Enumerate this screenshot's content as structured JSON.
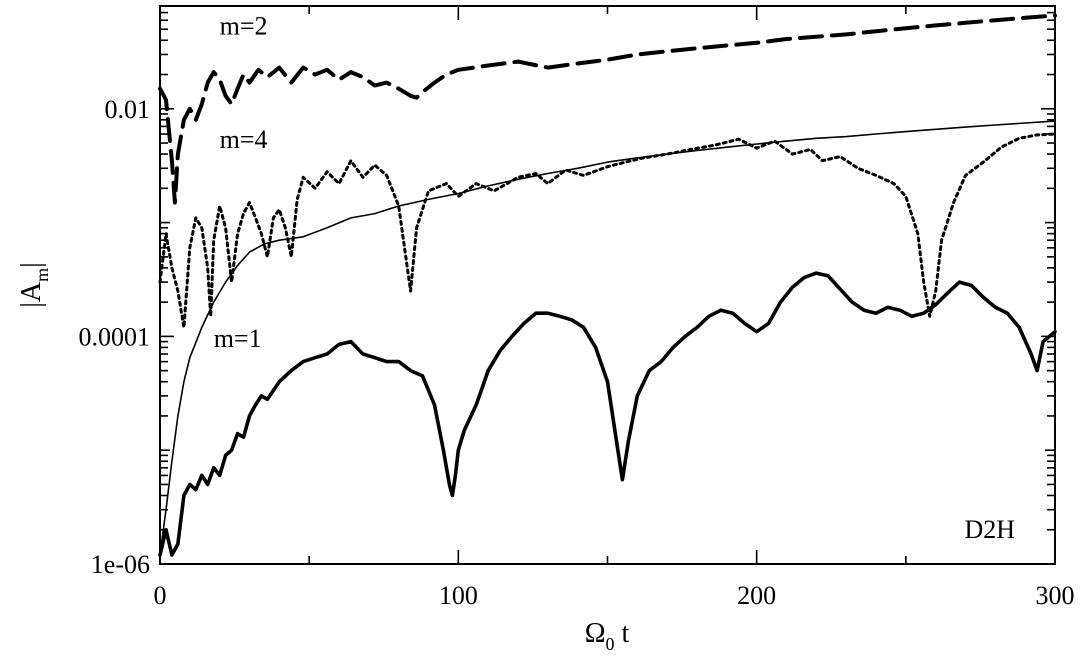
{
  "chart_data": {
    "type": "line",
    "x_title": {
      "main": "Ω",
      "sub": "0",
      "rest": " t"
    },
    "y_title": {
      "main": "|A",
      "sub": "m",
      "rest": "|"
    },
    "xlim": [
      0,
      300
    ],
    "ylim": [
      1e-06,
      0.08
    ],
    "yscale": "log",
    "grid": false,
    "x_ticks": [
      0,
      100,
      200,
      300
    ],
    "x_tick_labels": [
      "0",
      "100",
      "200",
      "300"
    ],
    "y_ticks": [
      1e-06,
      0.0001,
      0.01
    ],
    "y_tick_labels": [
      "1e-06",
      "0.0001",
      "0.01"
    ],
    "panel_label": "D2H",
    "series": [
      {
        "name": "m=2",
        "label_at": [
          20,
          0.045
        ],
        "style": "dashed",
        "color": "#000000",
        "points": [
          [
            0,
            0.015
          ],
          [
            2,
            0.012
          ],
          [
            4,
            0.0035
          ],
          [
            5,
            0.0015
          ],
          [
            6,
            0.004
          ],
          [
            8,
            0.008
          ],
          [
            10,
            0.01
          ],
          [
            12,
            0.008
          ],
          [
            14,
            0.011
          ],
          [
            16,
            0.017
          ],
          [
            18,
            0.021
          ],
          [
            20,
            0.018
          ],
          [
            22,
            0.013
          ],
          [
            24,
            0.011
          ],
          [
            26,
            0.015
          ],
          [
            28,
            0.02
          ],
          [
            30,
            0.017
          ],
          [
            33,
            0.022
          ],
          [
            36,
            0.019
          ],
          [
            40,
            0.023
          ],
          [
            44,
            0.017
          ],
          [
            48,
            0.023
          ],
          [
            52,
            0.02
          ],
          [
            56,
            0.022
          ],
          [
            60,
            0.018
          ],
          [
            64,
            0.021
          ],
          [
            68,
            0.019
          ],
          [
            72,
            0.016
          ],
          [
            76,
            0.017
          ],
          [
            80,
            0.015
          ],
          [
            84,
            0.013
          ],
          [
            86,
            0.0125
          ],
          [
            88,
            0.014
          ],
          [
            92,
            0.017
          ],
          [
            96,
            0.02
          ],
          [
            100,
            0.022
          ],
          [
            110,
            0.024
          ],
          [
            120,
            0.026
          ],
          [
            130,
            0.023
          ],
          [
            140,
            0.025
          ],
          [
            150,
            0.027
          ],
          [
            160,
            0.03
          ],
          [
            170,
            0.032
          ],
          [
            180,
            0.034
          ],
          [
            190,
            0.036
          ],
          [
            200,
            0.038
          ],
          [
            210,
            0.041
          ],
          [
            220,
            0.043
          ],
          [
            230,
            0.045
          ],
          [
            240,
            0.048
          ],
          [
            250,
            0.051
          ],
          [
            260,
            0.054
          ],
          [
            270,
            0.057
          ],
          [
            280,
            0.06
          ],
          [
            290,
            0.063
          ],
          [
            300,
            0.066
          ]
        ]
      },
      {
        "name": "m=4",
        "label_at": [
          20,
          0.0045
        ],
        "style": "dotted",
        "color": "#000000",
        "points": [
          [
            0,
            0.0003
          ],
          [
            2,
            0.0008
          ],
          [
            4,
            0.0004
          ],
          [
            6,
            0.00025
          ],
          [
            8,
            0.00012
          ],
          [
            10,
            0.0006
          ],
          [
            12,
            0.0011
          ],
          [
            14,
            0.0009
          ],
          [
            16,
            0.0004
          ],
          [
            17,
            0.00015
          ],
          [
            18,
            0.0007
          ],
          [
            20,
            0.0014
          ],
          [
            22,
            0.0009
          ],
          [
            24,
            0.0003
          ],
          [
            26,
            0.0008
          ],
          [
            28,
            0.0012
          ],
          [
            30,
            0.0015
          ],
          [
            32,
            0.0011
          ],
          [
            34,
            0.0008
          ],
          [
            36,
            0.0005
          ],
          [
            38,
            0.0011
          ],
          [
            40,
            0.0013
          ],
          [
            42,
            0.0009
          ],
          [
            44,
            0.0005
          ],
          [
            46,
            0.0016
          ],
          [
            48,
            0.0025
          ],
          [
            52,
            0.002
          ],
          [
            56,
            0.0028
          ],
          [
            60,
            0.0022
          ],
          [
            64,
            0.0035
          ],
          [
            68,
            0.0025
          ],
          [
            72,
            0.0032
          ],
          [
            76,
            0.0026
          ],
          [
            80,
            0.0014
          ],
          [
            84,
            0.00025
          ],
          [
            86,
            0.0009
          ],
          [
            90,
            0.0019
          ],
          [
            96,
            0.0022
          ],
          [
            100,
            0.0017
          ],
          [
            106,
            0.0022
          ],
          [
            112,
            0.0019
          ],
          [
            120,
            0.0025
          ],
          [
            126,
            0.0027
          ],
          [
            130,
            0.0022
          ],
          [
            136,
            0.0029
          ],
          [
            142,
            0.0026
          ],
          [
            150,
            0.0031
          ],
          [
            156,
            0.0034
          ],
          [
            162,
            0.0037
          ],
          [
            170,
            0.004
          ],
          [
            178,
            0.0044
          ],
          [
            186,
            0.0048
          ],
          [
            194,
            0.0054
          ],
          [
            200,
            0.0045
          ],
          [
            206,
            0.0052
          ],
          [
            212,
            0.004
          ],
          [
            218,
            0.0044
          ],
          [
            222,
            0.0035
          ],
          [
            228,
            0.0038
          ],
          [
            234,
            0.003
          ],
          [
            240,
            0.0026
          ],
          [
            246,
            0.0022
          ],
          [
            250,
            0.0017
          ],
          [
            254,
            0.0008
          ],
          [
            256,
            0.0003
          ],
          [
            258,
            0.00015
          ],
          [
            260,
            0.00025
          ],
          [
            262,
            0.0007
          ],
          [
            266,
            0.0015
          ],
          [
            270,
            0.0026
          ],
          [
            276,
            0.0034
          ],
          [
            282,
            0.0046
          ],
          [
            288,
            0.0055
          ],
          [
            294,
            0.0059
          ],
          [
            300,
            0.006
          ]
        ]
      },
      {
        "name": "",
        "style": "solid-thin",
        "color": "#000000",
        "points": [
          [
            0,
            1.2e-06
          ],
          [
            2,
            3e-06
          ],
          [
            4,
            8e-06
          ],
          [
            6,
            2e-05
          ],
          [
            8,
            4e-05
          ],
          [
            10,
            6.5e-05
          ],
          [
            14,
            0.00012
          ],
          [
            18,
            0.0002
          ],
          [
            22,
            0.0003
          ],
          [
            26,
            0.00042
          ],
          [
            30,
            0.00055
          ],
          [
            35,
            0.00065
          ],
          [
            40,
            0.0007
          ],
          [
            48,
            0.00075
          ],
          [
            56,
            0.0009
          ],
          [
            64,
            0.0011
          ],
          [
            72,
            0.0012
          ],
          [
            80,
            0.0014
          ],
          [
            90,
            0.0016
          ],
          [
            100,
            0.0018
          ],
          [
            110,
            0.0021
          ],
          [
            120,
            0.0024
          ],
          [
            130,
            0.0027
          ],
          [
            140,
            0.003
          ],
          [
            150,
            0.0034
          ],
          [
            160,
            0.0037
          ],
          [
            170,
            0.004
          ],
          [
            180,
            0.0043
          ],
          [
            190,
            0.0046
          ],
          [
            200,
            0.0049
          ],
          [
            210,
            0.0052
          ],
          [
            220,
            0.0055
          ],
          [
            230,
            0.0057
          ],
          [
            240,
            0.006
          ],
          [
            250,
            0.0063
          ],
          [
            260,
            0.0066
          ],
          [
            270,
            0.0069
          ],
          [
            280,
            0.0072
          ],
          [
            290,
            0.0075
          ],
          [
            300,
            0.0078
          ]
        ]
      },
      {
        "name": "m=1",
        "label_at": [
          18,
          8.1e-05
        ],
        "style": "solid-thick",
        "color": "#000000",
        "points": [
          [
            0,
            1.2e-06
          ],
          [
            2,
            2e-06
          ],
          [
            4,
            1.2e-06
          ],
          [
            6,
            1.5e-06
          ],
          [
            8,
            4e-06
          ],
          [
            10,
            5e-06
          ],
          [
            12,
            4.5e-06
          ],
          [
            14,
            6e-06
          ],
          [
            16,
            5e-06
          ],
          [
            18,
            7e-06
          ],
          [
            20,
            6e-06
          ],
          [
            22,
            9e-06
          ],
          [
            24,
            1e-05
          ],
          [
            26,
            1.4e-05
          ],
          [
            28,
            1.3e-05
          ],
          [
            30,
            2e-05
          ],
          [
            32,
            2.5e-05
          ],
          [
            34,
            3e-05
          ],
          [
            36,
            2.8e-05
          ],
          [
            40,
            4e-05
          ],
          [
            44,
            5e-05
          ],
          [
            48,
            6e-05
          ],
          [
            52,
            6.5e-05
          ],
          [
            56,
            7e-05
          ],
          [
            60,
            8.5e-05
          ],
          [
            64,
            9e-05
          ],
          [
            68,
            7e-05
          ],
          [
            72,
            6.5e-05
          ],
          [
            76,
            6e-05
          ],
          [
            80,
            6e-05
          ],
          [
            84,
            5e-05
          ],
          [
            88,
            4.5e-05
          ],
          [
            92,
            2.5e-05
          ],
          [
            95,
            1e-05
          ],
          [
            97,
            5e-06
          ],
          [
            98,
            4e-06
          ],
          [
            99,
            6e-06
          ],
          [
            100,
            1e-05
          ],
          [
            102,
            1.5e-05
          ],
          [
            106,
            2.5e-05
          ],
          [
            110,
            5e-05
          ],
          [
            114,
            7.5e-05
          ],
          [
            118,
            0.0001
          ],
          [
            122,
            0.00013
          ],
          [
            126,
            0.00016
          ],
          [
            130,
            0.00016
          ],
          [
            134,
            0.00015
          ],
          [
            138,
            0.00014
          ],
          [
            142,
            0.00012
          ],
          [
            146,
            8e-05
          ],
          [
            150,
            4e-05
          ],
          [
            153,
            1.2e-05
          ],
          [
            155,
            5.5e-06
          ],
          [
            157,
            1.2e-05
          ],
          [
            160,
            3e-05
          ],
          [
            164,
            5e-05
          ],
          [
            168,
            6e-05
          ],
          [
            172,
            8e-05
          ],
          [
            176,
            0.0001
          ],
          [
            180,
            0.00012
          ],
          [
            184,
            0.00015
          ],
          [
            188,
            0.00017
          ],
          [
            192,
            0.00016
          ],
          [
            196,
            0.00013
          ],
          [
            200,
            0.00011
          ],
          [
            204,
            0.00013
          ],
          [
            208,
            0.0002
          ],
          [
            212,
            0.00027
          ],
          [
            216,
            0.00033
          ],
          [
            220,
            0.00036
          ],
          [
            224,
            0.00034
          ],
          [
            228,
            0.00026
          ],
          [
            232,
            0.0002
          ],
          [
            236,
            0.00017
          ],
          [
            240,
            0.00016
          ],
          [
            244,
            0.00018
          ],
          [
            248,
            0.00017
          ],
          [
            252,
            0.00015
          ],
          [
            256,
            0.00016
          ],
          [
            260,
            0.00019
          ],
          [
            264,
            0.00024
          ],
          [
            268,
            0.0003
          ],
          [
            272,
            0.00028
          ],
          [
            276,
            0.00022
          ],
          [
            280,
            0.00018
          ],
          [
            284,
            0.00016
          ],
          [
            288,
            0.00012
          ],
          [
            292,
            7e-05
          ],
          [
            294,
            5e-05
          ],
          [
            296,
            9e-05
          ],
          [
            300,
            0.00011
          ]
        ]
      }
    ]
  }
}
